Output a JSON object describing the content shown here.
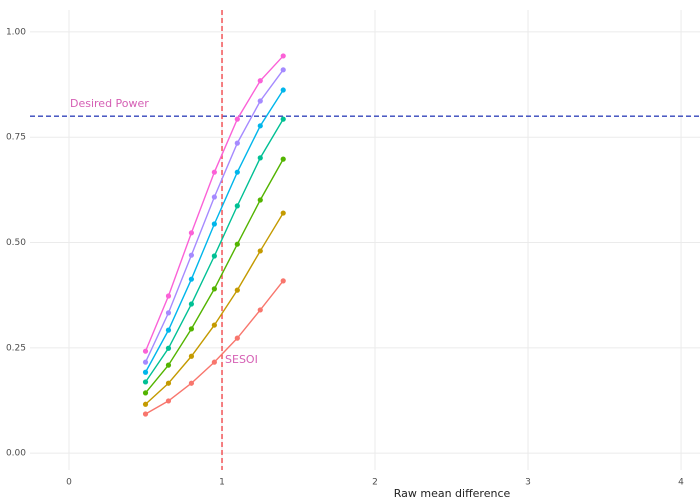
{
  "chart_data": {
    "type": "line",
    "x": [
      0.5,
      0.65,
      0.8,
      0.95,
      1.1,
      1.25,
      1.4
    ],
    "series": [
      {
        "color": "#F8766D",
        "values": [
          0.093,
          0.124,
          0.166,
          0.216,
          0.273,
          0.34,
          0.409
        ]
      },
      {
        "color": "#C49A00",
        "values": [
          0.116,
          0.166,
          0.23,
          0.304,
          0.387,
          0.48,
          0.57
        ]
      },
      {
        "color": "#53B400",
        "values": [
          0.143,
          0.209,
          0.295,
          0.39,
          0.496,
          0.601,
          0.698
        ]
      },
      {
        "color": "#00C094",
        "values": [
          0.169,
          0.249,
          0.354,
          0.468,
          0.587,
          0.701,
          0.793
        ]
      },
      {
        "color": "#00B6EB",
        "values": [
          0.192,
          0.292,
          0.413,
          0.544,
          0.667,
          0.777,
          0.862
        ]
      },
      {
        "color": "#A58AFF",
        "values": [
          0.216,
          0.333,
          0.47,
          0.608,
          0.736,
          0.836,
          0.91
        ]
      },
      {
        "color": "#FB61D7",
        "values": [
          0.242,
          0.373,
          0.523,
          0.667,
          0.793,
          0.884,
          0.943
        ]
      }
    ],
    "xlabel": "Raw mean difference",
    "xlim": [
      -0.255,
      4.124
    ],
    "ylim": [
      -0.04,
      1.052
    ],
    "xticks": [
      0,
      1,
      2,
      3,
      4
    ],
    "yticks": [
      {
        "value": 0,
        "label": "0.00"
      },
      {
        "value": 0.25,
        "label": "0.25"
      },
      {
        "value": 0.5,
        "label": "0.50"
      },
      {
        "value": 0.75,
        "label": "0.75"
      },
      {
        "value": 1,
        "label": "1.00"
      }
    ],
    "grid": true,
    "hline": {
      "value": 0.8,
      "color": "#3344bb",
      "label": "Desired Power"
    },
    "vline": {
      "value": 1,
      "color": "#F0474B",
      "label": "SESOI"
    },
    "annotation_color": "#D55FB4"
  }
}
